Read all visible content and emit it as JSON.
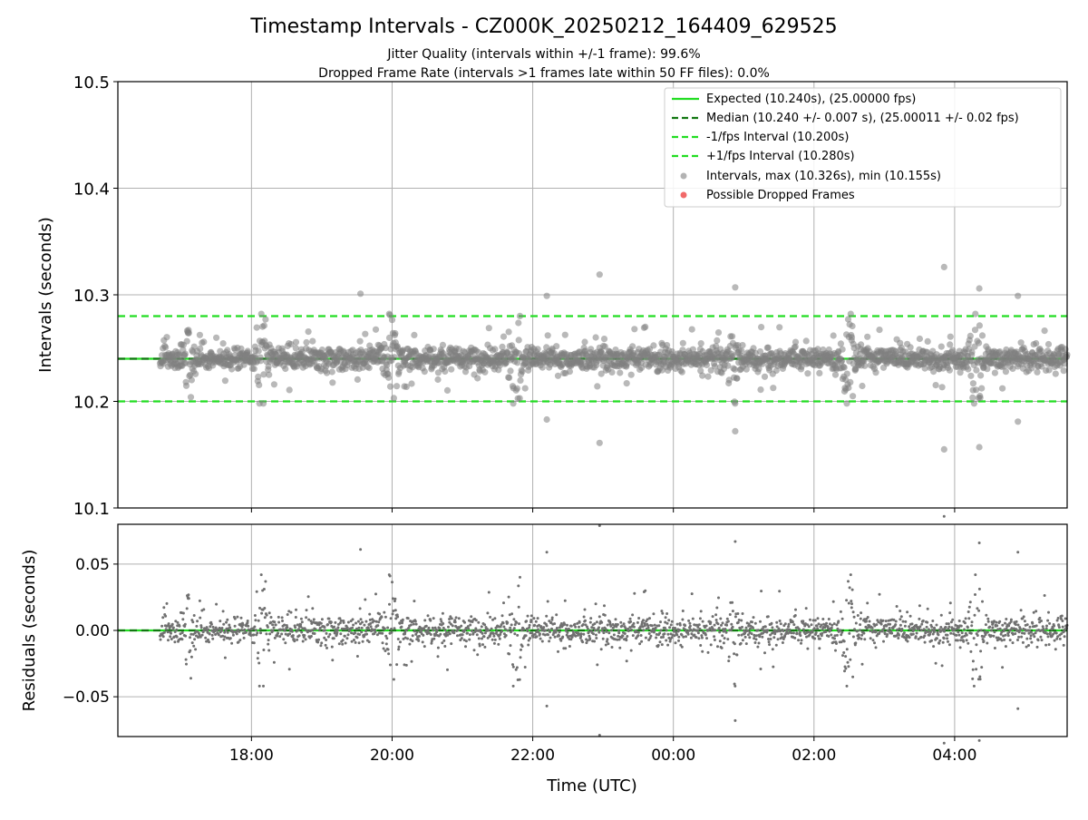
{
  "figure": {
    "title": "Timestamp Intervals - CZ000K_20250212_164409_629525",
    "subtitle1": "Jitter Quality (intervals within +/-1 frame): 99.6%",
    "subtitle2": "Dropped Frame Rate (intervals >1 frames late within 50 FF files): 0.0%"
  },
  "chart_data": [
    {
      "type": "scatter",
      "ylabel": "Intervals (seconds)",
      "ylim": [
        10.1,
        10.5
      ],
      "xlim_hours": [
        16.1,
        29.6
      ],
      "grid": true,
      "legend_placement": "top-right",
      "x_ticks": [
        {
          "value": 18,
          "label": "18:00"
        },
        {
          "value": 20,
          "label": "20:00"
        },
        {
          "value": 22,
          "label": "22:00"
        },
        {
          "value": 24,
          "label": "00:00"
        },
        {
          "value": 26,
          "label": "02:00"
        },
        {
          "value": 28,
          "label": "04:00"
        }
      ],
      "y_ticks": [
        10.1,
        10.2,
        10.3,
        10.4,
        10.5
      ],
      "y_tick_labels": [
        "10.1",
        "10.2",
        "10.3",
        "10.4",
        "10.5"
      ],
      "reference_lines": [
        {
          "name": "Expected (10.240s), (25.00000 fps)",
          "value": 10.24,
          "color": "#22dd22",
          "style": "solid"
        },
        {
          "name": "Median (10.240 +/- 0.007 s), (25.00011 +/- 0.02 fps)",
          "value": 10.24,
          "color": "#117711",
          "style": "dashed"
        },
        {
          "name": "-1/fps Interval (10.200s)",
          "value": 10.2,
          "color": "#22dd22",
          "style": "dashed"
        },
        {
          "name": "+1/fps Interval (10.280s)",
          "value": 10.28,
          "color": "#22dd22",
          "style": "dashed"
        }
      ],
      "scatter_series": [
        {
          "name": "Intervals, max (10.326s), min (10.155s)",
          "color": "#808080"
        },
        {
          "name": "Possible Dropped Frames",
          "color": "#ee4444"
        }
      ],
      "series_range": {
        "x_start_hours": 16.7,
        "x_end_hours": 29.6,
        "center": 10.24,
        "max": 10.326,
        "min": 10.155
      },
      "outliers": [
        {
          "x": 19.55,
          "y": 10.301
        },
        {
          "x": 22.2,
          "y": 10.299
        },
        {
          "x": 22.2,
          "y": 10.183
        },
        {
          "x": 22.95,
          "y": 10.319
        },
        {
          "x": 22.95,
          "y": 10.161
        },
        {
          "x": 24.88,
          "y": 10.307
        },
        {
          "x": 24.88,
          "y": 10.172
        },
        {
          "x": 27.85,
          "y": 10.326
        },
        {
          "x": 27.85,
          "y": 10.155
        },
        {
          "x": 28.35,
          "y": 10.306
        },
        {
          "x": 28.35,
          "y": 10.157
        },
        {
          "x": 28.9,
          "y": 10.299
        },
        {
          "x": 28.9,
          "y": 10.181
        },
        {
          "x": 19.97,
          "y": 10.281
        }
      ],
      "bursts": [
        {
          "x": 17.1,
          "spread": 0.016
        },
        {
          "x": 18.15,
          "spread": 0.024
        },
        {
          "x": 20.0,
          "spread": 0.03
        },
        {
          "x": 21.75,
          "spread": 0.032
        },
        {
          "x": 24.85,
          "spread": 0.024
        },
        {
          "x": 26.5,
          "spread": 0.026
        },
        {
          "x": 28.3,
          "spread": 0.024
        }
      ]
    },
    {
      "type": "scatter",
      "ylabel": "Residuals (seconds)",
      "xlabel": "Time (UTC)",
      "ylim": [
        -0.08,
        0.08
      ],
      "y_ticks": [
        -0.05,
        0.0,
        0.05
      ],
      "y_tick_labels": [
        "−0.05",
        "0.00",
        "0.05"
      ],
      "reference_lines": [
        {
          "value": 0.0,
          "color": "#22dd22",
          "style": "solid"
        },
        {
          "value": 0.0,
          "color": "#117711",
          "style": "dashed"
        }
      ],
      "point_color": "#707070"
    }
  ]
}
